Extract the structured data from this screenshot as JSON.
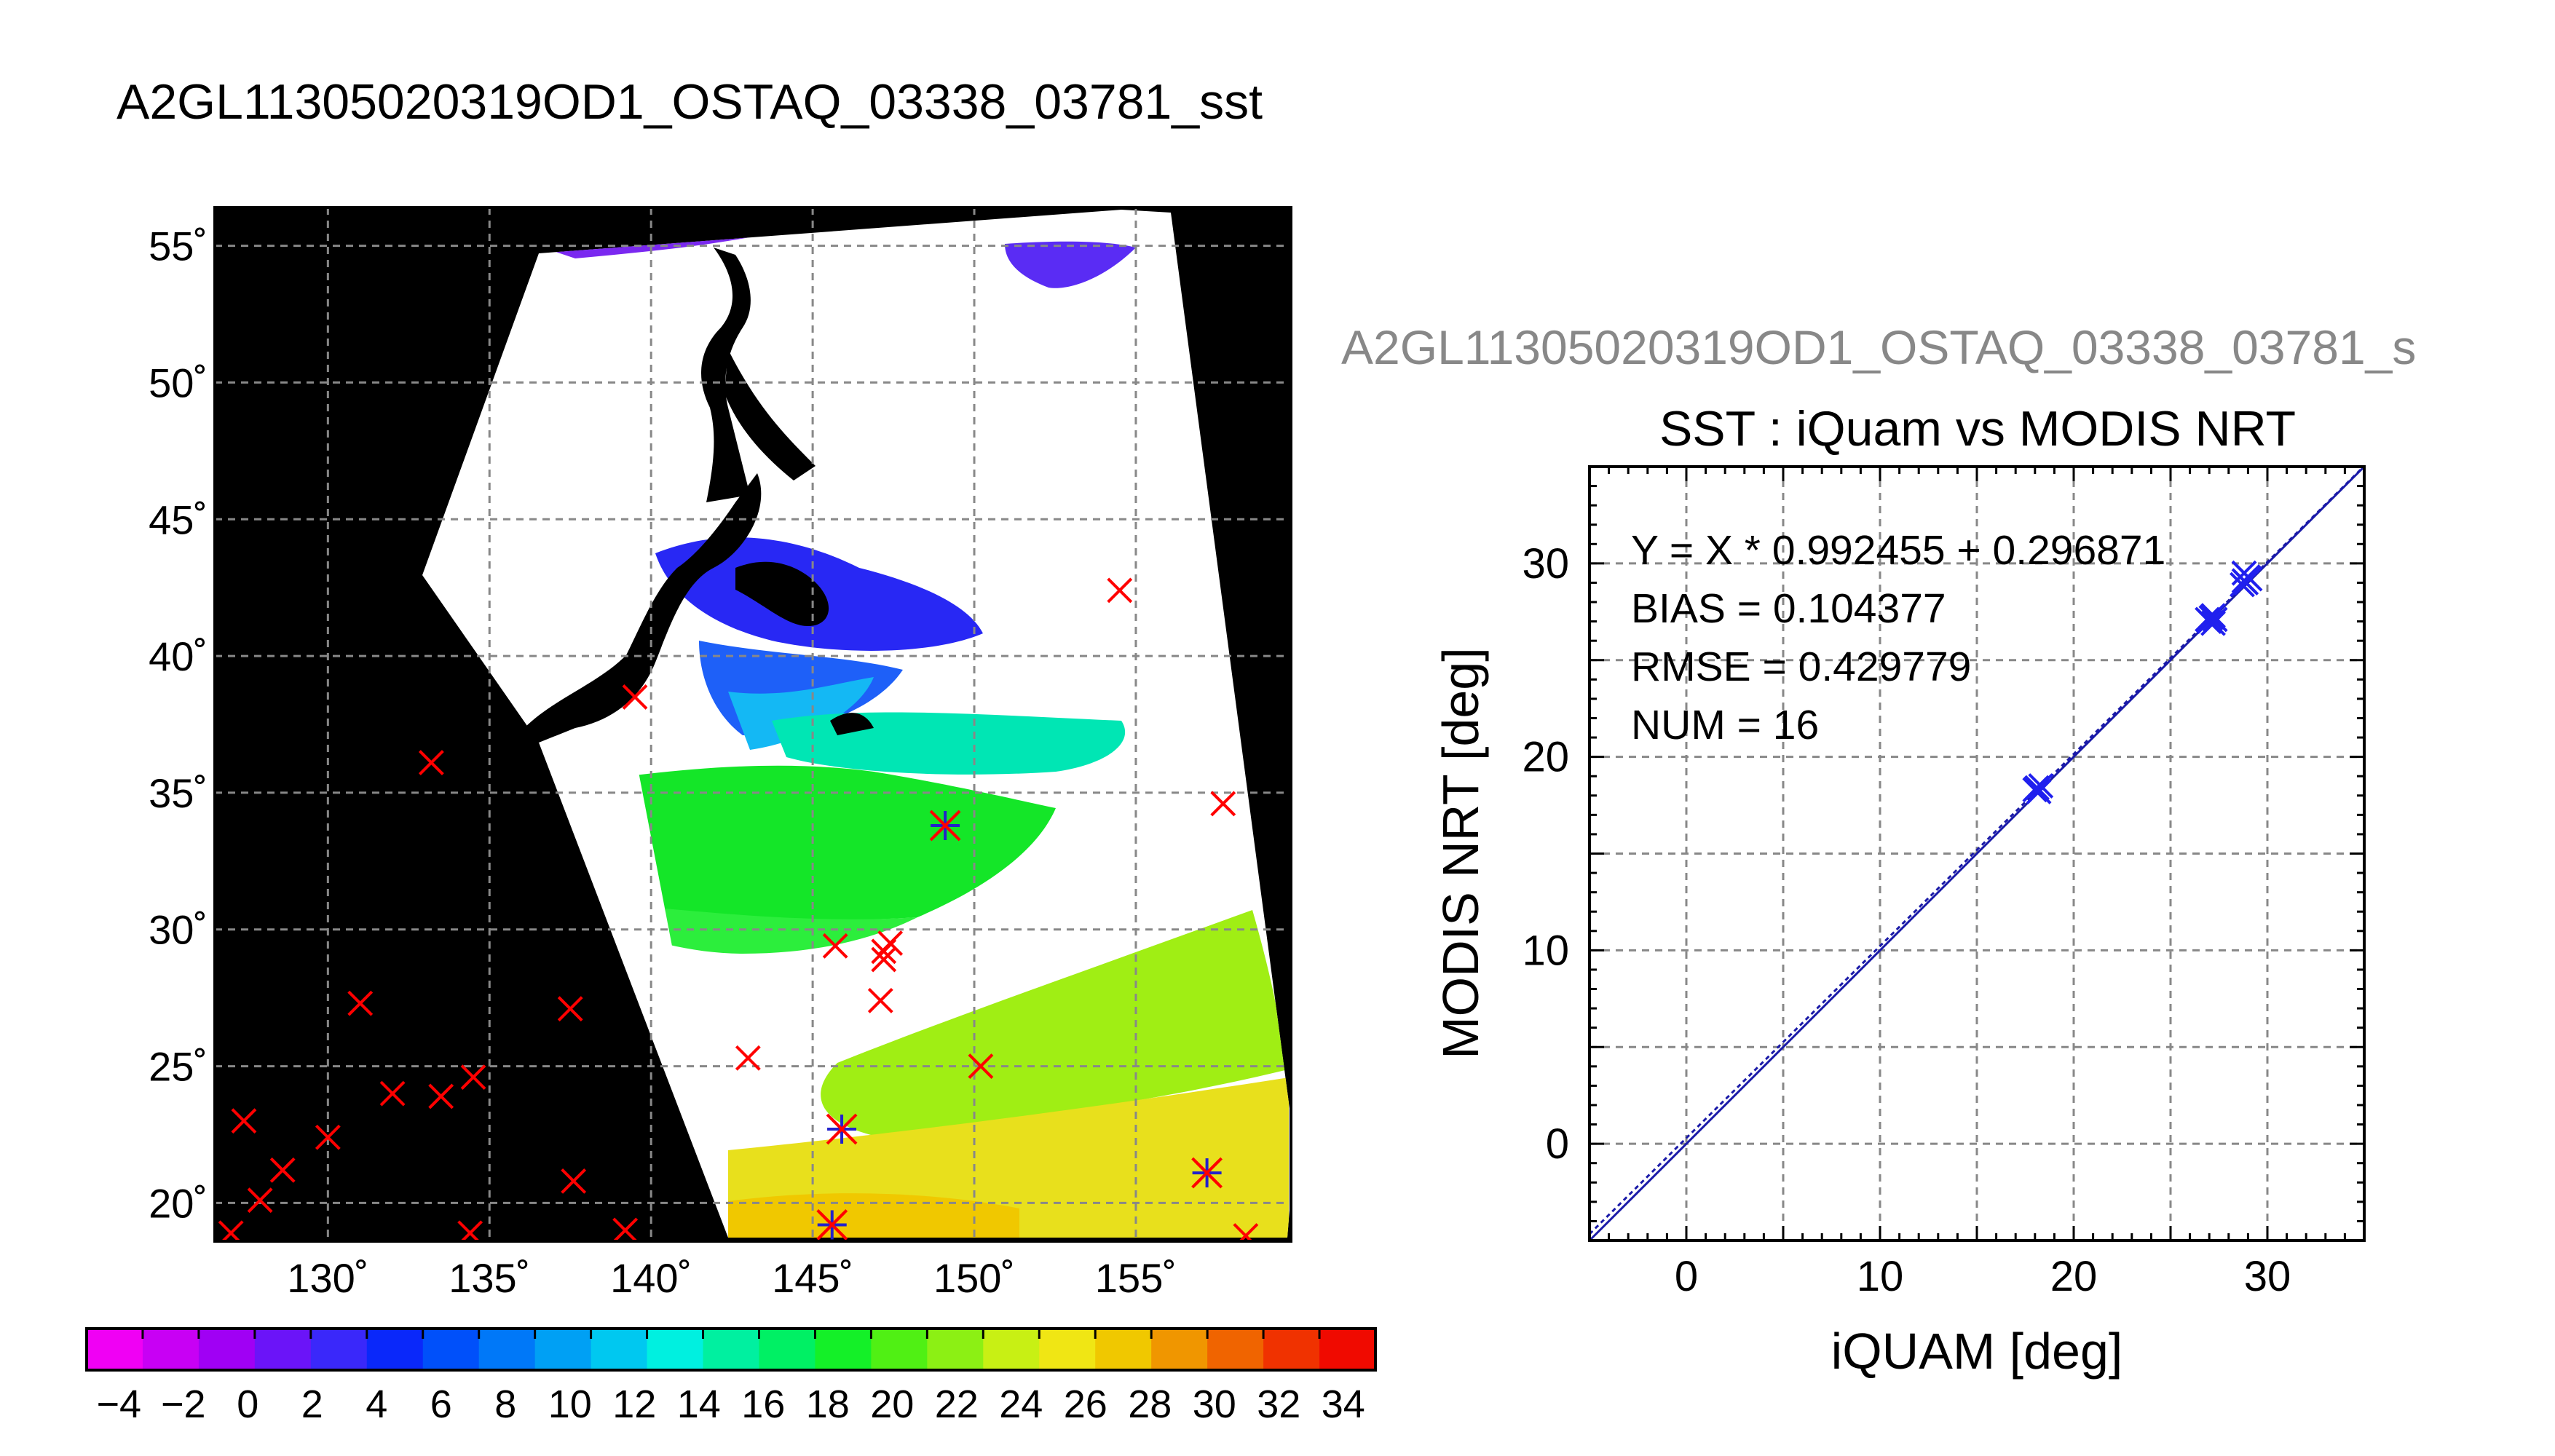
{
  "main_title": "A2GL11305020319OD1_OSTAQ_03338_03781_sst",
  "map": {
    "lon_ticks": [
      "130˚",
      "135˚",
      "140˚",
      "145˚",
      "150˚",
      "155˚"
    ],
    "lat_ticks": [
      "55˚",
      "50˚",
      "45˚",
      "40˚",
      "35˚",
      "30˚",
      "25˚",
      "20˚"
    ],
    "lon_range": [
      126.5,
      159.8
    ],
    "lat_range": [
      18.6,
      56.4
    ],
    "gridlines": true,
    "land_color": "#000000",
    "cloud_color": "#ffffff",
    "marker_colors": {
      "insitu": "#ff0000",
      "match": "#2222cc"
    },
    "insitu_points": [
      [
        127.4,
        23.0
      ],
      [
        128.6,
        21.2
      ],
      [
        127.0,
        18.9
      ],
      [
        127.9,
        20.1
      ],
      [
        130.0,
        22.4
      ],
      [
        131.0,
        27.3
      ],
      [
        132.0,
        24.0
      ],
      [
        133.2,
        36.1
      ],
      [
        133.5,
        23.9
      ],
      [
        134.5,
        24.6
      ],
      [
        134.4,
        18.9
      ],
      [
        137.5,
        27.1
      ],
      [
        137.6,
        20.8
      ],
      [
        139.2,
        19.0
      ],
      [
        139.5,
        38.5
      ],
      [
        143.0,
        25.3
      ],
      [
        145.7,
        29.4
      ],
      [
        147.1,
        27.4
      ],
      [
        147.2,
        29.2
      ],
      [
        147.4,
        29.5
      ],
      [
        147.2,
        28.9
      ],
      [
        149.1,
        33.8
      ],
      [
        150.2,
        25.0
      ],
      [
        154.5,
        42.4
      ],
      [
        157.7,
        34.6
      ],
      [
        158.4,
        18.8
      ],
      [
        145.9,
        22.7
      ],
      [
        145.6,
        19.2
      ],
      [
        157.2,
        21.1
      ]
    ],
    "matchup_points": [
      [
        149.1,
        33.8
      ],
      [
        145.9,
        22.7
      ],
      [
        145.6,
        19.2
      ],
      [
        157.2,
        21.1
      ]
    ]
  },
  "colorbar": {
    "labels": [
      "−4",
      "−2",
      "0",
      "2",
      "4",
      "6",
      "8",
      "10",
      "12",
      "14",
      "16",
      "18",
      "20",
      "22",
      "24",
      "26",
      "28",
      "30",
      "32",
      "34"
    ],
    "range": [
      -5,
      35
    ],
    "step": 2,
    "colors": [
      "#f000f4",
      "#c800f4",
      "#a000f4",
      "#6b14f8",
      "#3a28fa",
      "#0a28fa",
      "#0050fa",
      "#0078f8",
      "#00a0f4",
      "#00c8f0",
      "#00f0e0",
      "#00f0a0",
      "#00f064",
      "#14f028",
      "#50f014",
      "#8cf014",
      "#c8f014",
      "#f0e614",
      "#f0c800",
      "#f09600",
      "#f06400",
      "#f03200",
      "#f00a00"
    ]
  },
  "scatter": {
    "header": "A2GL11305020319OD1_OSTAQ_03338_03781_s",
    "title": "SST : iQuam vs MODIS NRT",
    "xlabel": "iQUAM [deg]",
    "ylabel": "MODIS NRT [deg]",
    "x_ticks": [
      "0",
      "10",
      "20",
      "30"
    ],
    "y_ticks": [
      "0",
      "10",
      "20",
      "30"
    ],
    "xlim": [
      -5,
      35
    ],
    "ylim": [
      -5,
      35
    ],
    "stats": [
      "Y = X * 0.992455 + 0.296871",
      "BIAS = 0.104377",
      "RMSE = 0.429779",
      "NUM = 16"
    ],
    "marker_color": "#2020ee",
    "fit_color": "#1a1aa8",
    "fit": {
      "slope": 0.992455,
      "intercept": 0.296871
    }
  },
  "chart_data": {
    "type": "scatter",
    "title": "SST : iQuam vs MODIS NRT",
    "xlabel": "iQUAM [deg]",
    "ylabel": "MODIS NRT [deg]",
    "xlim": [
      -5,
      35
    ],
    "ylim": [
      -5,
      35
    ],
    "grid": true,
    "x": [
      18.0,
      18.1,
      18.2,
      18.3,
      26.9,
      27.0,
      27.1,
      27.2,
      27.3,
      27.2,
      28.7,
      28.8,
      28.9,
      29.0,
      28.8,
      29.1
    ],
    "y": [
      18.3,
      18.4,
      18.2,
      18.5,
      27.1,
      27.0,
      27.2,
      27.3,
      27.1,
      26.9,
      28.9,
      29.1,
      29.0,
      29.3,
      29.5,
      29.2
    ],
    "annotations": [
      "Y = X * 0.992455 + 0.296871",
      "BIAS = 0.104377",
      "RMSE = 0.429779",
      "NUM = 16"
    ]
  }
}
